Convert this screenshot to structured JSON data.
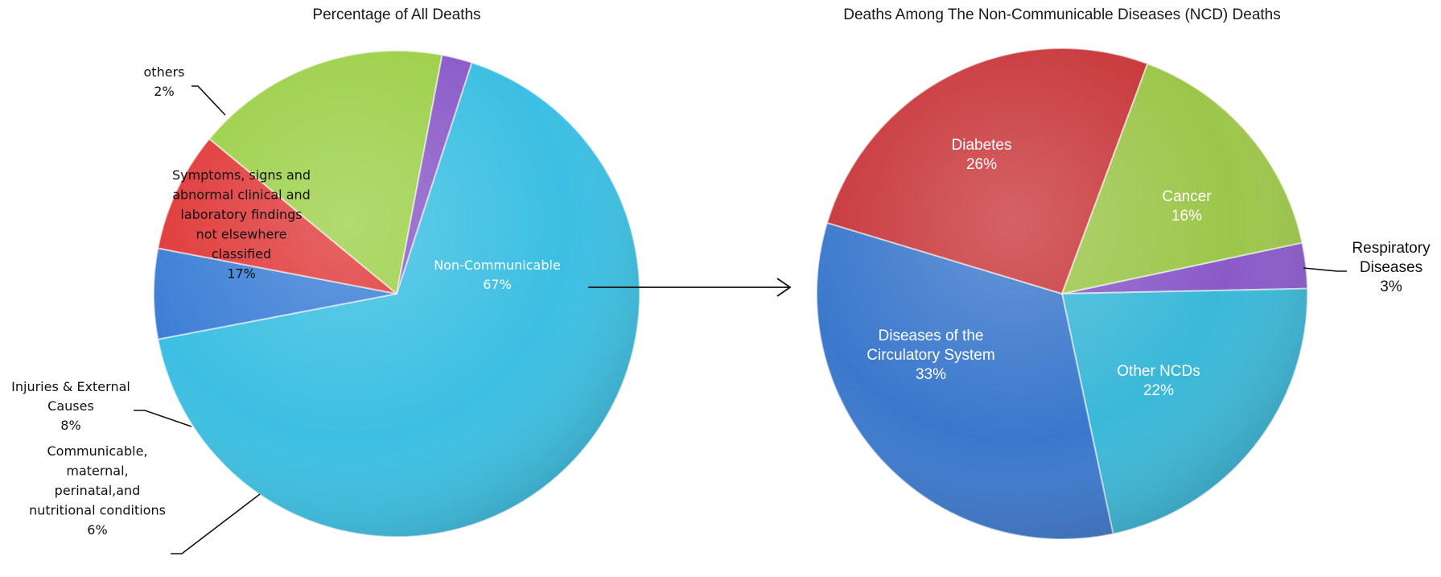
{
  "chart_data": [
    {
      "type": "pie",
      "title": "Percentage of All Deaths",
      "slices": [
        {
          "label": "Non-Communicable",
          "value": 67,
          "value_label": "67%",
          "color": "#3bbfe2"
        },
        {
          "label": "Communicable, maternal, perinatal,and nutritional conditions",
          "value": 6,
          "value_label": "6%",
          "color": "#3d7fd6"
        },
        {
          "label": "Injuries & External Causes",
          "value": 8,
          "value_label": "8%",
          "color": "#e03a3a"
        },
        {
          "label": "Symptoms, signs and abnormal clinical and laboratory findings not elsewhere classified",
          "value": 17,
          "value_label": "17%",
          "color": "#9cd048"
        },
        {
          "label": "others",
          "value": 2,
          "value_label": "2%",
          "color": "#8a5ac8"
        }
      ]
    },
    {
      "type": "pie",
      "title": "Deaths Among The Non-Communicable Diseases (NCD) Deaths",
      "slices": [
        {
          "label": "Respiratory Diseases",
          "value": 3,
          "value_label": "3%",
          "color": "#8a5ac8"
        },
        {
          "label": "Other NCDs",
          "value": 22,
          "value_label": "22%",
          "color": "#3bb8d8"
        },
        {
          "label": "Diseases of the Circulatory System",
          "value": 33,
          "value_label": "33%",
          "color": "#3b78cc"
        },
        {
          "label": "Diabetes",
          "value": 26,
          "value_label": "26%",
          "color": "#c8373a"
        },
        {
          "label": "Cancer",
          "value": 16,
          "value_label": "16%",
          "color": "#9cc64a"
        }
      ]
    }
  ],
  "label_lines": {
    "left_noncomm": [
      "Non-Communicable",
      "67%"
    ],
    "left_comm": [
      "Communicable,",
      "maternal,",
      "perinatal,and",
      "nutritional conditions",
      "6%"
    ],
    "left_injuries": [
      "Injuries & External",
      "Causes",
      "8%"
    ],
    "left_symptoms": [
      "Symptoms, signs and",
      "abnormal clinical and",
      "laboratory findings",
      "not elsewhere",
      "classified",
      "17%"
    ],
    "left_others": [
      "others",
      "2%"
    ],
    "right_resp": [
      "Respiratory",
      "Diseases",
      "3%"
    ],
    "right_other": [
      "Other NCDs",
      "22%"
    ],
    "right_circ": [
      "Diseases of the",
      "Circulatory System",
      "33%"
    ],
    "right_diab": [
      "Diabetes",
      "26%"
    ],
    "right_cancer": [
      "Cancer",
      "16%"
    ]
  }
}
